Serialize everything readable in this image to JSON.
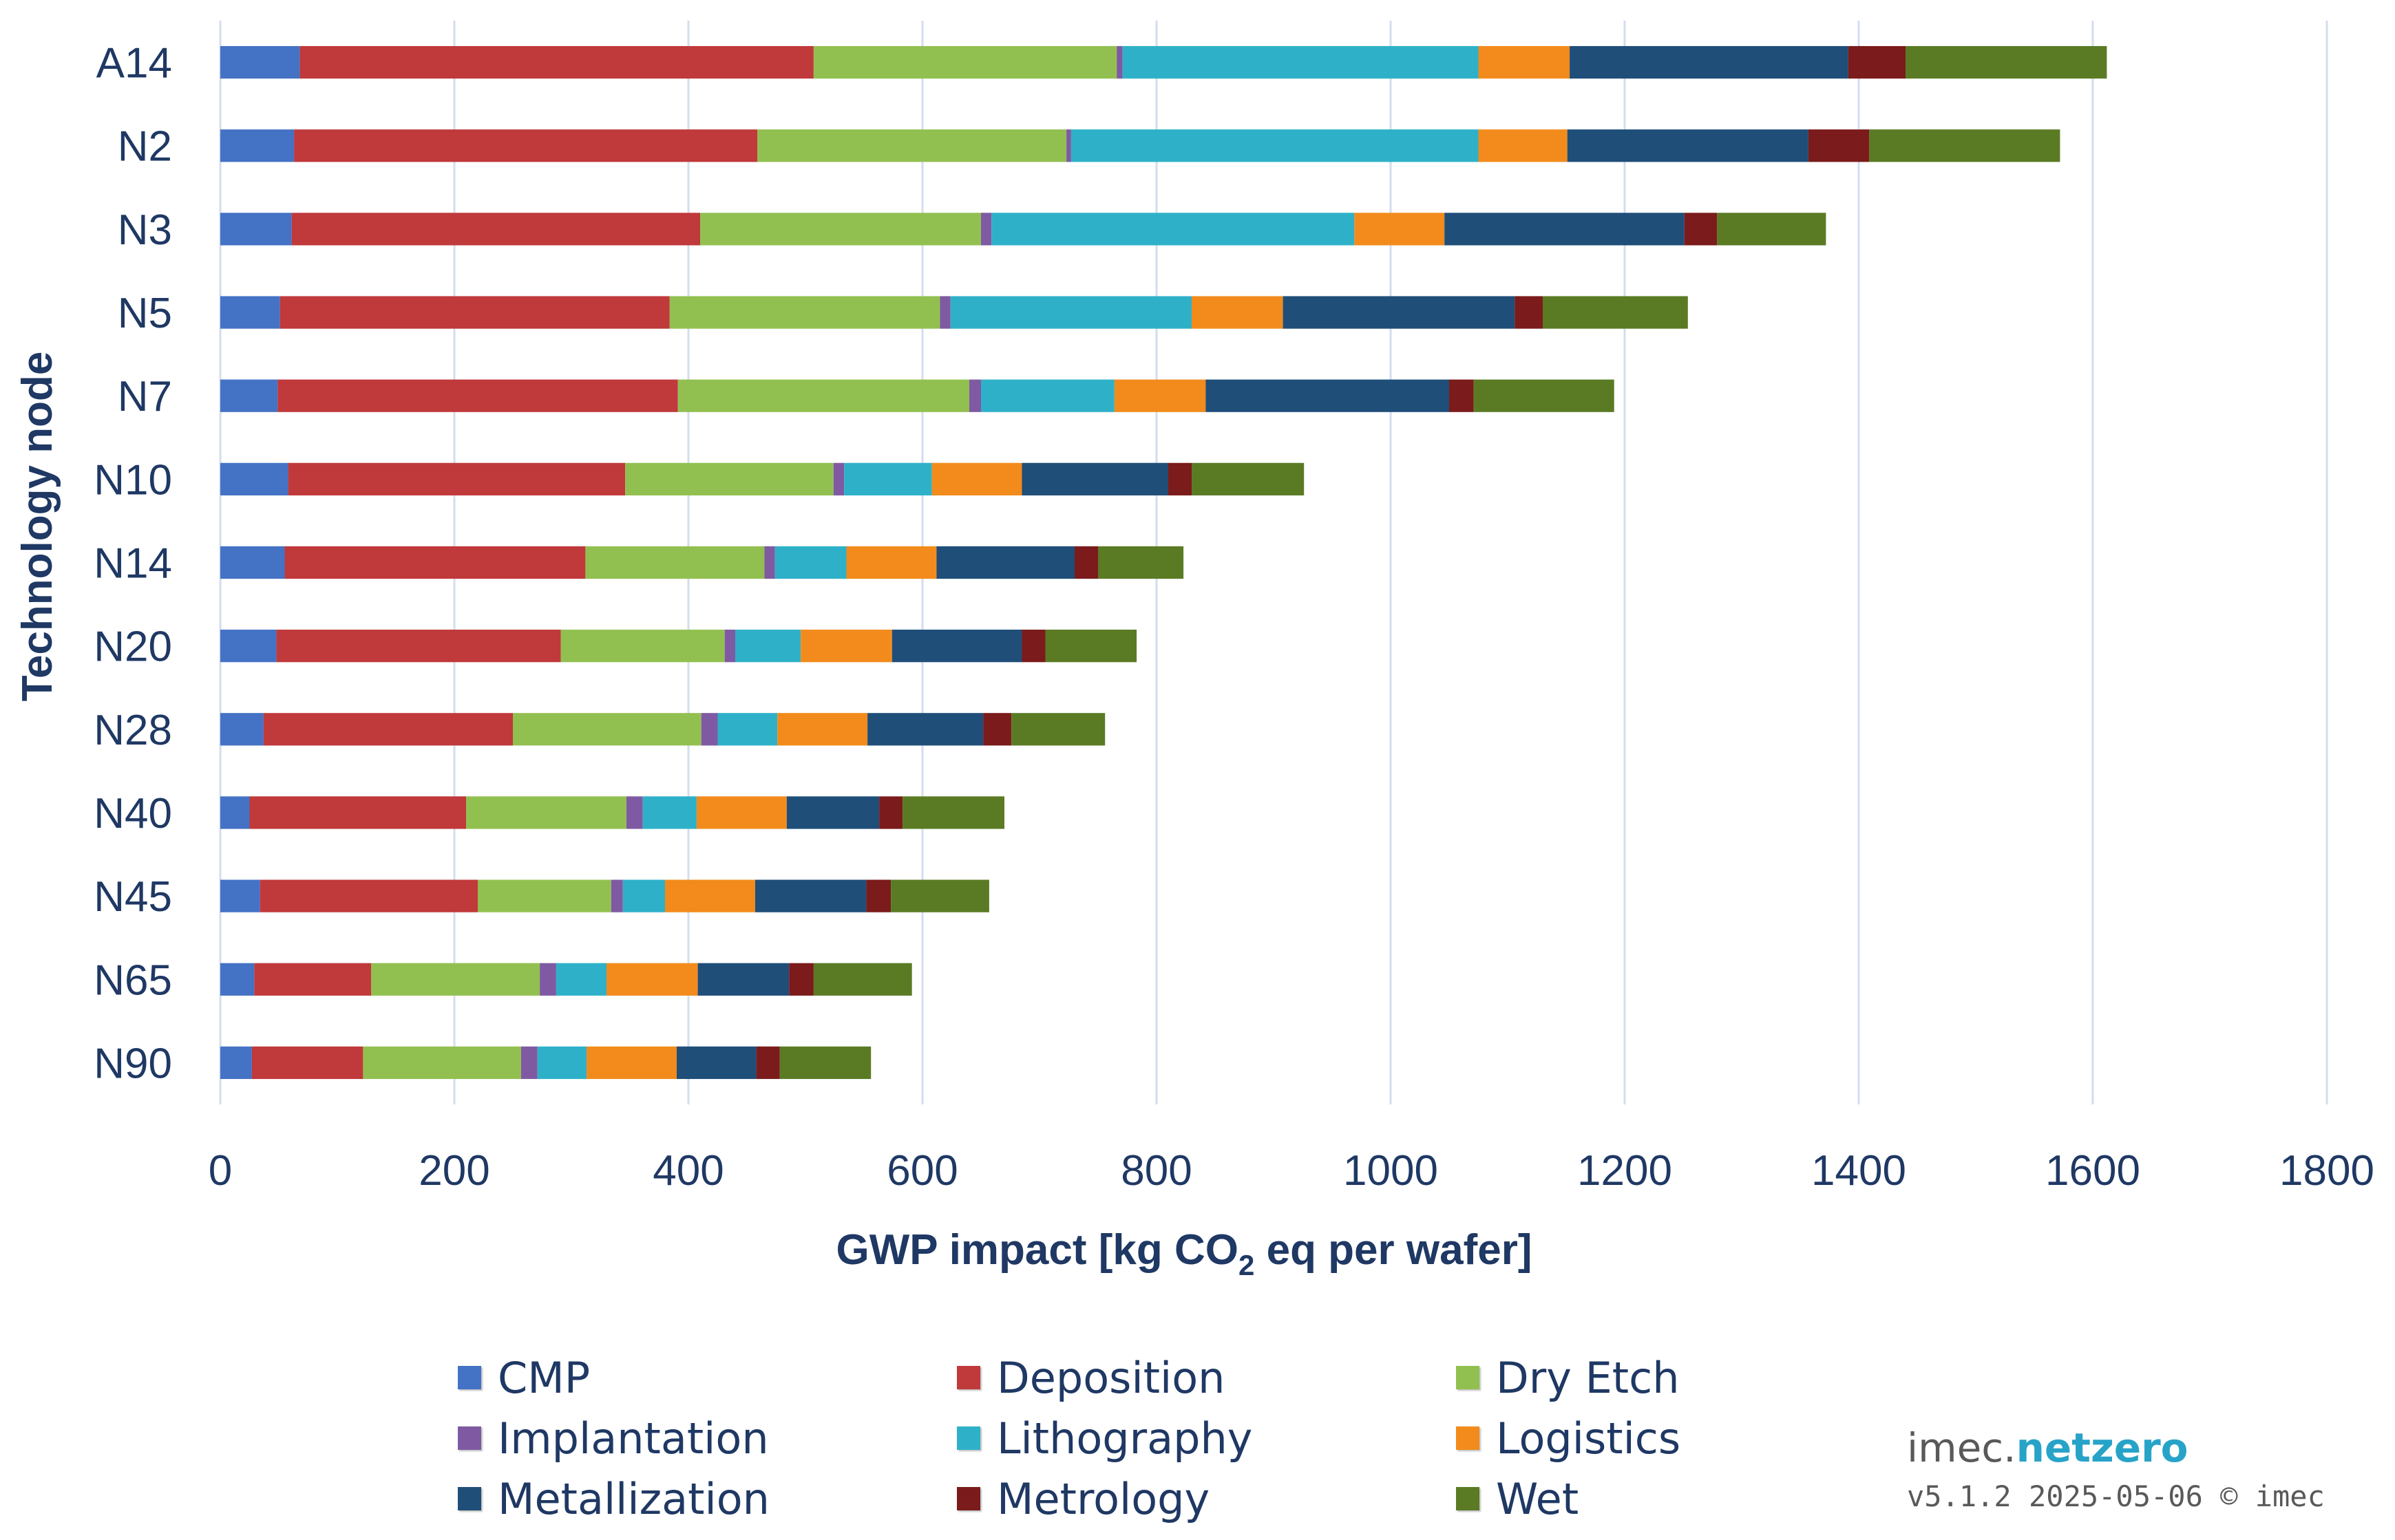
{
  "chart_data": {
    "type": "bar",
    "orientation": "horizontal",
    "stacked": true,
    "title": "",
    "xlabel_main": "GWP impact [kg CO",
    "xlabel_sub": "2",
    "xlabel_end": " eq per wafer]",
    "ylabel": "Technology node",
    "xlim": [
      0,
      1800
    ],
    "xticks": [
      "0",
      "200",
      "400",
      "600",
      "800",
      "1000",
      "1200",
      "1400",
      "1600",
      "1800"
    ],
    "grid": true,
    "legend_position": "bottom",
    "categories": [
      "A14",
      "N2",
      "N3",
      "N5",
      "N7",
      "N10",
      "N14",
      "N20",
      "N28",
      "N40",
      "N45",
      "N65",
      "N90"
    ],
    "series": [
      {
        "name": "CMP",
        "color": "#4472c4",
        "values": [
          68,
          63,
          61,
          51,
          49,
          58,
          55,
          48,
          37,
          25,
          34,
          29,
          27
        ]
      },
      {
        "name": "Deposition",
        "color": "#c0393b",
        "values": [
          439,
          396,
          349,
          333,
          342,
          288,
          257,
          243,
          213,
          185,
          186,
          100,
          95
        ]
      },
      {
        "name": "Dry Etch",
        "color": "#92c050",
        "values": [
          259,
          264,
          240,
          231,
          249,
          178,
          153,
          140,
          161,
          137,
          114,
          144,
          135
        ]
      },
      {
        "name": "Implantation",
        "color": "#7f5aa2",
        "values": [
          5,
          4,
          9,
          9,
          10,
          9,
          9,
          9,
          14,
          14,
          10,
          14,
          14
        ]
      },
      {
        "name": "Lithography",
        "color": "#2eb1c8",
        "values": [
          304,
          348,
          310,
          206,
          114,
          75,
          61,
          56,
          51,
          46,
          36,
          43,
          42
        ]
      },
      {
        "name": "Logistics",
        "color": "#f28b1c",
        "values": [
          78,
          76,
          77,
          78,
          78,
          77,
          77,
          78,
          77,
          77,
          77,
          78,
          77
        ]
      },
      {
        "name": "Metallization",
        "color": "#1f4e79",
        "values": [
          238,
          206,
          205,
          198,
          208,
          125,
          118,
          111,
          99,
          79,
          95,
          78,
          68
        ]
      },
      {
        "name": "Metrology",
        "color": "#7b1b1b",
        "values": [
          49,
          52,
          28,
          24,
          21,
          20,
          20,
          20,
          24,
          20,
          21,
          21,
          20
        ]
      },
      {
        "name": "Wet",
        "color": "#5a7b24",
        "values": [
          172,
          163,
          93,
          124,
          120,
          96,
          73,
          78,
          80,
          87,
          84,
          84,
          78
        ]
      }
    ]
  },
  "branding": {
    "prefix": "imec.",
    "accent": "netzero",
    "version": "v5.1.2 2025-05-06 © imec"
  }
}
